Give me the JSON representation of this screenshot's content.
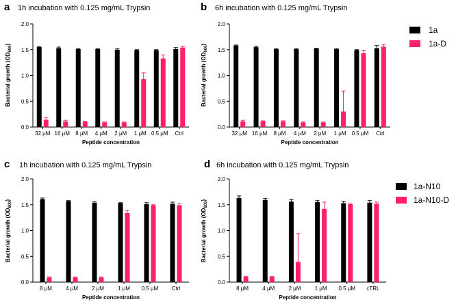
{
  "colors": {
    "series_a": "#000000",
    "series_b": "#ff1f6e"
  },
  "panels": [
    {
      "letter": "a",
      "title": "1h incubation with 0.125 mg/mL Trypsin"
    },
    {
      "letter": "b",
      "title": "6h incubation with 0.125 mg/mL Trypsin"
    },
    {
      "letter": "c",
      "title": "1h incubation with 0.125 mg/mL Trypsin"
    },
    {
      "letter": "d",
      "title": "6h incubation with 0.125 mg/mL Trypsin"
    }
  ],
  "chart_data": [
    {
      "type": "bar",
      "panel": "a",
      "title": "1h incubation with 0.125 mg/mL Trypsin",
      "xlabel": "Peptide concentration",
      "ylabel": "Bacterial growth (OD600)",
      "ylim": [
        0,
        2.0
      ],
      "yticks": [
        "0.0",
        "0.5",
        "1.0",
        "1.5",
        "2.0"
      ],
      "categories": [
        "32 μM",
        "16 μM",
        "8 μM",
        "4 μM",
        "2 μM",
        "1 μM",
        "0.5 μM",
        "Ctrl"
      ],
      "series": [
        {
          "name": "1a",
          "values": [
            1.55,
            1.53,
            1.51,
            1.51,
            1.5,
            1.49,
            1.49,
            1.51
          ],
          "errors": [
            0.01,
            0.02,
            0.01,
            0.01,
            0.02,
            0.01,
            0.01,
            0.03
          ]
        },
        {
          "name": "1a-D",
          "values": [
            0.14,
            0.11,
            0.1,
            0.09,
            0.09,
            0.93,
            1.33,
            1.54
          ],
          "errors": [
            0.04,
            0.02,
            0.01,
            0.01,
            0.01,
            0.12,
            0.07,
            0.03
          ]
        }
      ],
      "legend": "right"
    },
    {
      "type": "bar",
      "panel": "b",
      "title": "6h incubation with 0.125 mg/mL Trypsin",
      "xlabel": "Peptide concentration",
      "ylabel": "Bacterial growth (OD600)",
      "ylim": [
        0,
        2.0
      ],
      "yticks": [
        "0.0",
        "0.5",
        "1.0",
        "1.5",
        "2.0"
      ],
      "categories": [
        "32 μM",
        "16 μM",
        "8 μM",
        "4 μM",
        "2 μM",
        "1 μM",
        "0.5 μM",
        "Ctrl"
      ],
      "series": [
        {
          "name": "1a",
          "values": [
            1.58,
            1.55,
            1.51,
            1.51,
            1.52,
            1.51,
            1.49,
            1.53
          ],
          "errors": [
            0.01,
            0.02,
            0.01,
            0.01,
            0.01,
            0.01,
            0.01,
            0.05
          ]
        },
        {
          "name": "1a-D",
          "values": [
            0.11,
            0.11,
            0.11,
            0.09,
            0.09,
            0.3,
            1.43,
            1.56
          ],
          "errors": [
            0.02,
            0.01,
            0.01,
            0.01,
            0.01,
            0.4,
            0.06,
            0.04
          ]
        }
      ],
      "legend": "right"
    },
    {
      "type": "bar",
      "panel": "c",
      "title": "1h incubation with 0.125 mg/mL Trypsin",
      "xlabel": "Peptide concentration",
      "ylabel": "Bacterial growth (OD600)",
      "ylim": [
        0,
        2.0
      ],
      "yticks": [
        "0.0",
        "0.5",
        "1.0",
        "1.5",
        "2.0"
      ],
      "categories": [
        "8 μM",
        "4 μM",
        "2 μM",
        "1 μM",
        "0.5 μM",
        "Ctrl"
      ],
      "series": [
        {
          "name": "1a-N10",
          "values": [
            1.61,
            1.57,
            1.54,
            1.53,
            1.51,
            1.52
          ],
          "errors": [
            0.02,
            0.01,
            0.02,
            0.01,
            0.03,
            0.03
          ]
        },
        {
          "name": "1a-N10-D",
          "values": [
            0.09,
            0.09,
            0.09,
            1.34,
            1.49,
            1.49
          ],
          "errors": [
            0.01,
            0.01,
            0.01,
            0.05,
            0.01,
            0.03
          ]
        }
      ],
      "legend": "right"
    },
    {
      "type": "bar",
      "panel": "d",
      "title": "6h incubation with 0.125 mg/mL Trypsin",
      "xlabel": "Peptide concentration",
      "ylabel": "Bacterial growth (OD600)",
      "ylim": [
        0,
        2.0
      ],
      "yticks": [
        "0.0",
        "0.5",
        "1.0",
        "1.5",
        "2.0"
      ],
      "categories": [
        "8 μM",
        "4 μM",
        "2 μM",
        "1 μM",
        "0.5 μM",
        "cTRL"
      ],
      "series": [
        {
          "name": "1a-N10",
          "values": [
            1.63,
            1.59,
            1.56,
            1.55,
            1.53,
            1.54
          ],
          "errors": [
            0.04,
            0.03,
            0.04,
            0.03,
            0.04,
            0.04
          ]
        },
        {
          "name": "1a-N10-D",
          "values": [
            0.1,
            0.1,
            0.39,
            1.42,
            1.51,
            1.52
          ],
          "errors": [
            0.01,
            0.01,
            0.55,
            0.13,
            0.01,
            0.03
          ]
        }
      ],
      "legend": "right"
    }
  ],
  "legends": [
    {
      "items": [
        "1a",
        "1a-D"
      ]
    },
    {
      "items": [
        "1a-N10",
        "1a-N10-D"
      ]
    }
  ]
}
